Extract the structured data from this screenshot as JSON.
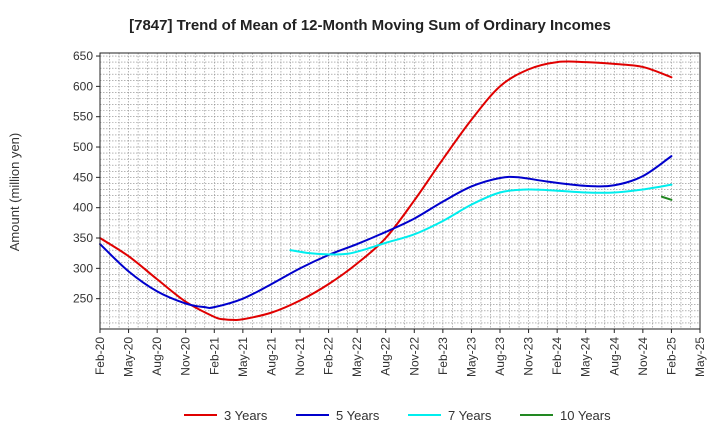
{
  "chart_data": {
    "type": "line",
    "title": "[7847]  Trend of Mean of 12-Month Moving Sum of Ordinary Incomes",
    "xlabel": "",
    "ylabel": "Amount (million yen)",
    "ylim": [
      200,
      655
    ],
    "yticks": [
      250,
      300,
      350,
      400,
      450,
      500,
      550,
      600,
      650
    ],
    "xlim": [
      0,
      63
    ],
    "xtick_labels": [
      "Feb-20",
      "May-20",
      "Aug-20",
      "Nov-20",
      "Feb-21",
      "May-21",
      "Aug-21",
      "Nov-21",
      "Feb-22",
      "May-22",
      "Aug-22",
      "Nov-22",
      "Feb-23",
      "May-23",
      "Aug-23",
      "Nov-23",
      "Feb-24",
      "May-24",
      "Aug-24",
      "Nov-24",
      "Feb-25",
      "May-25"
    ],
    "grid": true,
    "legend_position": "bottom",
    "series": [
      {
        "name": "3 Years",
        "color": "#e00000",
        "points": [
          [
            0,
            350
          ],
          [
            3,
            320
          ],
          [
            6,
            282
          ],
          [
            9,
            245
          ],
          [
            12,
            220
          ],
          [
            13,
            216
          ],
          [
            14,
            215
          ],
          [
            15,
            216
          ],
          [
            18,
            227
          ],
          [
            21,
            247
          ],
          [
            24,
            274
          ],
          [
            27,
            308
          ],
          [
            30,
            350
          ],
          [
            33,
            412
          ],
          [
            36,
            480
          ],
          [
            39,
            545
          ],
          [
            42,
            600
          ],
          [
            45,
            628
          ],
          [
            48,
            640
          ],
          [
            51,
            640
          ],
          [
            54,
            637
          ],
          [
            57,
            632
          ],
          [
            60,
            615
          ]
        ]
      },
      {
        "name": "5 Years",
        "color": "#0000cc",
        "points": [
          [
            0,
            340
          ],
          [
            3,
            295
          ],
          [
            6,
            262
          ],
          [
            9,
            242
          ],
          [
            11,
            236
          ],
          [
            12,
            236
          ],
          [
            15,
            250
          ],
          [
            18,
            274
          ],
          [
            21,
            300
          ],
          [
            24,
            322
          ],
          [
            27,
            340
          ],
          [
            30,
            360
          ],
          [
            33,
            382
          ],
          [
            36,
            410
          ],
          [
            39,
            435
          ],
          [
            42,
            449
          ],
          [
            44,
            450
          ],
          [
            47,
            443
          ],
          [
            51,
            436
          ],
          [
            54,
            437
          ],
          [
            57,
            452
          ],
          [
            60,
            485
          ]
        ]
      },
      {
        "name": "7 Years",
        "color": "#00eeee",
        "points": [
          [
            20,
            330
          ],
          [
            22,
            325
          ],
          [
            24,
            323
          ],
          [
            26,
            324
          ],
          [
            28,
            332
          ],
          [
            30,
            342
          ],
          [
            33,
            356
          ],
          [
            36,
            378
          ],
          [
            39,
            405
          ],
          [
            42,
            425
          ],
          [
            45,
            430
          ],
          [
            48,
            428
          ],
          [
            51,
            425
          ],
          [
            54,
            425
          ],
          [
            57,
            430
          ],
          [
            60,
            438
          ]
        ]
      },
      {
        "name": "10 Years",
        "color": "#228822",
        "points": [
          [
            59,
            418
          ],
          [
            60,
            413
          ]
        ]
      }
    ]
  }
}
